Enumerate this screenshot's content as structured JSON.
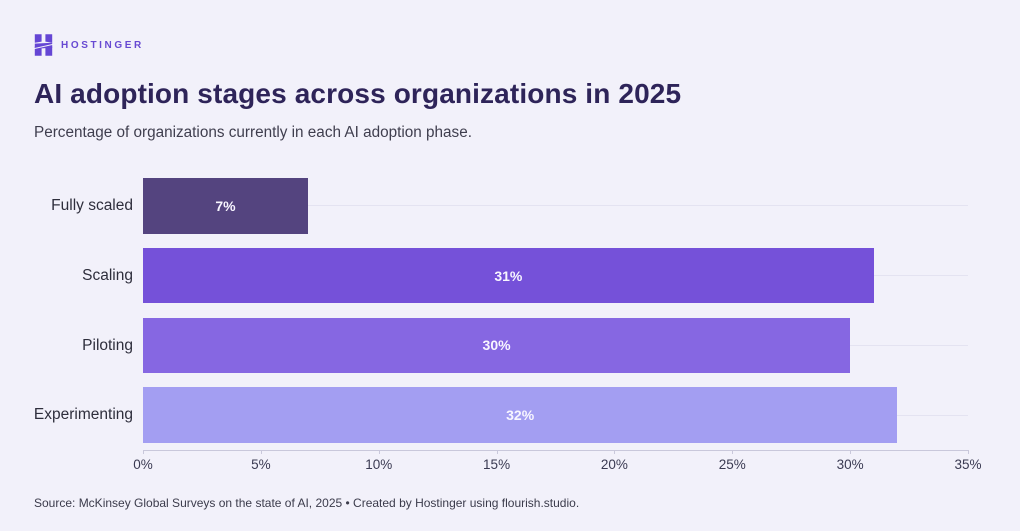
{
  "logo": {
    "icon": "hostinger-h-logo",
    "wordmark": "HOSTINGER",
    "color": "#6749d2"
  },
  "header": {
    "title": "AI adoption stages across organizations in 2025",
    "subtitle": "Percentage of organizations currently in each AI adoption phase."
  },
  "chart_data": {
    "type": "bar",
    "orientation": "horizontal",
    "categories": [
      "Fully scaled",
      "Scaling",
      "Piloting",
      "Experimenting"
    ],
    "values": [
      7,
      31,
      30,
      32
    ],
    "value_labels": [
      "7%",
      "31%",
      "30%",
      "32%"
    ],
    "bar_colors": [
      "#54447f",
      "#7551d9",
      "#8667e2",
      "#a39ef2"
    ],
    "xlim": [
      0,
      35
    ],
    "x_ticks": [
      0,
      5,
      10,
      15,
      20,
      25,
      30,
      35
    ],
    "x_tick_labels": [
      "0%",
      "5%",
      "10%",
      "15%",
      "20%",
      "25%",
      "30%",
      "35%"
    ],
    "grid": "row lines",
    "legend": "none",
    "title": "AI adoption stages across organizations in 2025",
    "xlabel": "",
    "ylabel": ""
  },
  "footer": {
    "source": "Source: McKinsey Global Surveys on the state of AI, 2025 • Created by Hostinger using flourish.studio."
  }
}
